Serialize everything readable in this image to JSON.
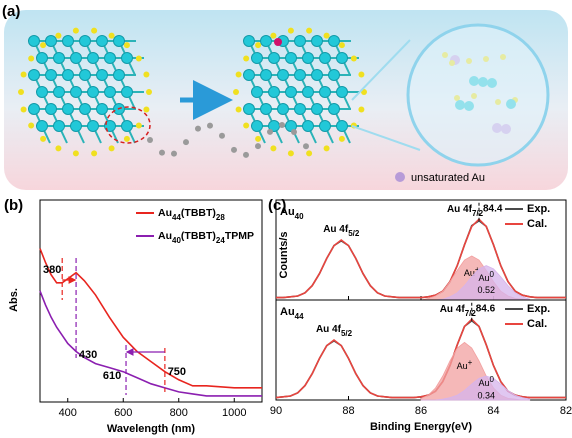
{
  "panel_a": {
    "label": "(a)",
    "legend": "unsaturated Au"
  },
  "chart_data": [
    {
      "type": "line",
      "panel_label": "(b)",
      "xlabel": "Wavelength (nm)",
      "ylabel": "Abs.",
      "x": [
        300,
        320,
        340,
        360,
        380,
        400,
        430,
        460,
        500,
        550,
        600,
        650,
        700,
        750,
        800,
        850,
        900,
        1000,
        1100
      ],
      "xlim": [
        300,
        1100
      ],
      "xticks": [
        400,
        600,
        800,
        1000
      ],
      "ylim": [
        0,
        1
      ],
      "series": [
        {
          "name": [
            "Au",
            "44",
            "(TBBT)",
            "28"
          ],
          "color": "#e8251f",
          "values": [
            0.76,
            0.69,
            0.63,
            0.59,
            0.59,
            0.61,
            0.64,
            0.6,
            0.53,
            0.42,
            0.32,
            0.25,
            0.2,
            0.15,
            0.11,
            0.08,
            0.08,
            0.07,
            0.07
          ]
        },
        {
          "name": [
            "Au",
            "40",
            "(TBBT)",
            "24",
            "TPMP"
          ],
          "color": "#8b1fb0",
          "values": [
            0.55,
            0.48,
            0.42,
            0.37,
            0.33,
            0.29,
            0.25,
            0.22,
            0.19,
            0.17,
            0.15,
            0.12,
            0.09,
            0.07,
            0.05,
            0.04,
            0.03,
            0.03,
            0.03
          ]
        }
      ],
      "annotations": [
        {
          "value": 380,
          "color": "#e8251f"
        },
        {
          "value": 430,
          "color": "#8b1fb0"
        },
        {
          "value": 610,
          "color": "#8b1fb0"
        },
        {
          "value": 750,
          "color": "#e8251f"
        }
      ]
    },
    {
      "type": "line",
      "panel_label": "(c)",
      "ylabel": "Counts/s",
      "title": [
        "Au",
        "40"
      ],
      "x": [
        90,
        89.8,
        89.6,
        89.4,
        89.2,
        89,
        88.8,
        88.6,
        88.4,
        88.2,
        88,
        87.8,
        87.6,
        87.4,
        87.2,
        87,
        86.8,
        86.6,
        86.4,
        86.2,
        86,
        85.8,
        85.6,
        85.4,
        85.2,
        85,
        84.8,
        84.6,
        84.4,
        84.2,
        84,
        83.8,
        83.6,
        83.4,
        83.2,
        83,
        82.8,
        82.6,
        82.4,
        82.2,
        82
      ],
      "xlim": [
        90,
        82
      ],
      "xticks": [
        90,
        88,
        86,
        84,
        82
      ],
      "ylim": [
        0,
        1.25
      ],
      "series": [
        {
          "name": "Exp.",
          "color": "#4a4a4a",
          "values": [
            0.03,
            0.03,
            0.04,
            0.05,
            0.09,
            0.18,
            0.33,
            0.52,
            0.68,
            0.74,
            0.68,
            0.52,
            0.33,
            0.18,
            0.09,
            0.05,
            0.04,
            0.03,
            0.03,
            0.03,
            0.03,
            0.04,
            0.06,
            0.11,
            0.23,
            0.43,
            0.69,
            0.93,
            0.99,
            0.92,
            0.69,
            0.43,
            0.23,
            0.11,
            0.06,
            0.04,
            0.03,
            0.03,
            0.03,
            0.03,
            0.03
          ]
        },
        {
          "name": "Cal.",
          "color": "#e8453f",
          "values": [
            0.03,
            0.03,
            0.04,
            0.05,
            0.09,
            0.18,
            0.33,
            0.52,
            0.68,
            0.75,
            0.68,
            0.52,
            0.33,
            0.18,
            0.09,
            0.05,
            0.04,
            0.03,
            0.03,
            0.03,
            0.03,
            0.04,
            0.06,
            0.11,
            0.23,
            0.43,
            0.69,
            0.92,
            1.01,
            0.92,
            0.69,
            0.43,
            0.23,
            0.11,
            0.06,
            0.04,
            0.03,
            0.03,
            0.03,
            0.03,
            0.03
          ]
        },
        {
          "name": [
            "Au",
            "+"
          ],
          "color": "#f2a0a0",
          "fill": true,
          "values": [
            null,
            null,
            null,
            null,
            null,
            null,
            null,
            null,
            null,
            null,
            null,
            null,
            null,
            null,
            null,
            null,
            null,
            null,
            null,
            null,
            0,
            0.02,
            0.05,
            0.11,
            0.23,
            0.37,
            0.5,
            0.55,
            0.5,
            0.37,
            0.23,
            0.11,
            0.05,
            0.02,
            0.01,
            0,
            null,
            null,
            null,
            null,
            null
          ]
        },
        {
          "name": [
            "Au",
            "0"
          ],
          "color": "#d6b4ec",
          "fill": true,
          "label_value": 0.52,
          "values": [
            null,
            null,
            null,
            null,
            null,
            null,
            null,
            null,
            null,
            null,
            null,
            null,
            null,
            null,
            null,
            null,
            null,
            null,
            null,
            null,
            0,
            0,
            0,
            0.01,
            0.04,
            0.09,
            0.18,
            0.29,
            0.39,
            0.43,
            0.39,
            0.29,
            0.18,
            0.09,
            0.04,
            0.01,
            null,
            null,
            null,
            null,
            null
          ]
        }
      ],
      "peaks": [
        {
          "label": [
            "Au 4f",
            "5/2"
          ]
        },
        {
          "label": [
            "Au 4f",
            "7/2"
          ],
          "value": 84.4
        }
      ]
    },
    {
      "type": "line",
      "xlabel": "Binding Energy(eV)",
      "title": [
        "Au",
        "44"
      ],
      "x": [
        90,
        89.8,
        89.6,
        89.4,
        89.2,
        89,
        88.8,
        88.6,
        88.4,
        88.2,
        88,
        87.8,
        87.6,
        87.4,
        87.2,
        87,
        86.8,
        86.6,
        86.4,
        86.2,
        86,
        85.8,
        85.6,
        85.4,
        85.2,
        85,
        84.8,
        84.6,
        84.4,
        84.2,
        84,
        83.8,
        83.6,
        83.4,
        83.2,
        83,
        82.8,
        82.6,
        82.4,
        82.2,
        82
      ],
      "xlim": [
        90,
        82
      ],
      "xticks": [
        90,
        88,
        86,
        84,
        82
      ],
      "ylim": [
        0,
        1.25
      ],
      "series": [
        {
          "name": "Exp.",
          "color": "#4a4a4a",
          "values": [
            0.03,
            0.04,
            0.05,
            0.09,
            0.18,
            0.33,
            0.52,
            0.68,
            0.74,
            0.68,
            0.52,
            0.33,
            0.18,
            0.09,
            0.05,
            0.04,
            0.03,
            0.03,
            0.03,
            0.03,
            0.04,
            0.06,
            0.11,
            0.23,
            0.43,
            0.69,
            0.92,
            0.99,
            0.92,
            0.69,
            0.43,
            0.23,
            0.11,
            0.06,
            0.04,
            0.03,
            0.03,
            0.03,
            0.03,
            0.03,
            0.03
          ]
        },
        {
          "name": "Cal.",
          "color": "#e8453f",
          "values": [
            0.03,
            0.04,
            0.05,
            0.09,
            0.18,
            0.33,
            0.52,
            0.68,
            0.75,
            0.68,
            0.52,
            0.33,
            0.18,
            0.09,
            0.05,
            0.04,
            0.03,
            0.03,
            0.03,
            0.03,
            0.04,
            0.06,
            0.11,
            0.23,
            0.43,
            0.69,
            0.92,
            1.01,
            0.92,
            0.69,
            0.43,
            0.23,
            0.11,
            0.06,
            0.04,
            0.03,
            0.03,
            0.03,
            0.03,
            0.03,
            0.03
          ]
        },
        {
          "name": [
            "Au",
            "+"
          ],
          "color": "#f2a0a0",
          "fill": true,
          "values": [
            null,
            null,
            null,
            null,
            null,
            null,
            null,
            null,
            null,
            null,
            null,
            null,
            null,
            null,
            null,
            null,
            null,
            null,
            null,
            null,
            0.02,
            0.06,
            0.15,
            0.3,
            0.49,
            0.65,
            0.72,
            0.65,
            0.49,
            0.3,
            0.15,
            0.06,
            0.02,
            0.01,
            0,
            0,
            null,
            null,
            null,
            null,
            null
          ]
        },
        {
          "name": [
            "Au",
            "0"
          ],
          "color": "#d6b4ec",
          "fill": true,
          "label_value": 0.34,
          "values": [
            null,
            null,
            null,
            null,
            null,
            null,
            null,
            null,
            null,
            null,
            null,
            null,
            null,
            null,
            null,
            null,
            null,
            null,
            null,
            null,
            0,
            0,
            0,
            0.01,
            0.03,
            0.06,
            0.12,
            0.2,
            0.27,
            0.3,
            0.27,
            0.2,
            0.12,
            0.06,
            0.03,
            0.01,
            null,
            null,
            null,
            null,
            null
          ]
        }
      ],
      "peaks": [
        {
          "label": [
            "Au 4f",
            "5/2"
          ]
        },
        {
          "label": [
            "Au 4f",
            "7/2"
          ],
          "value": 84.6
        }
      ]
    }
  ]
}
